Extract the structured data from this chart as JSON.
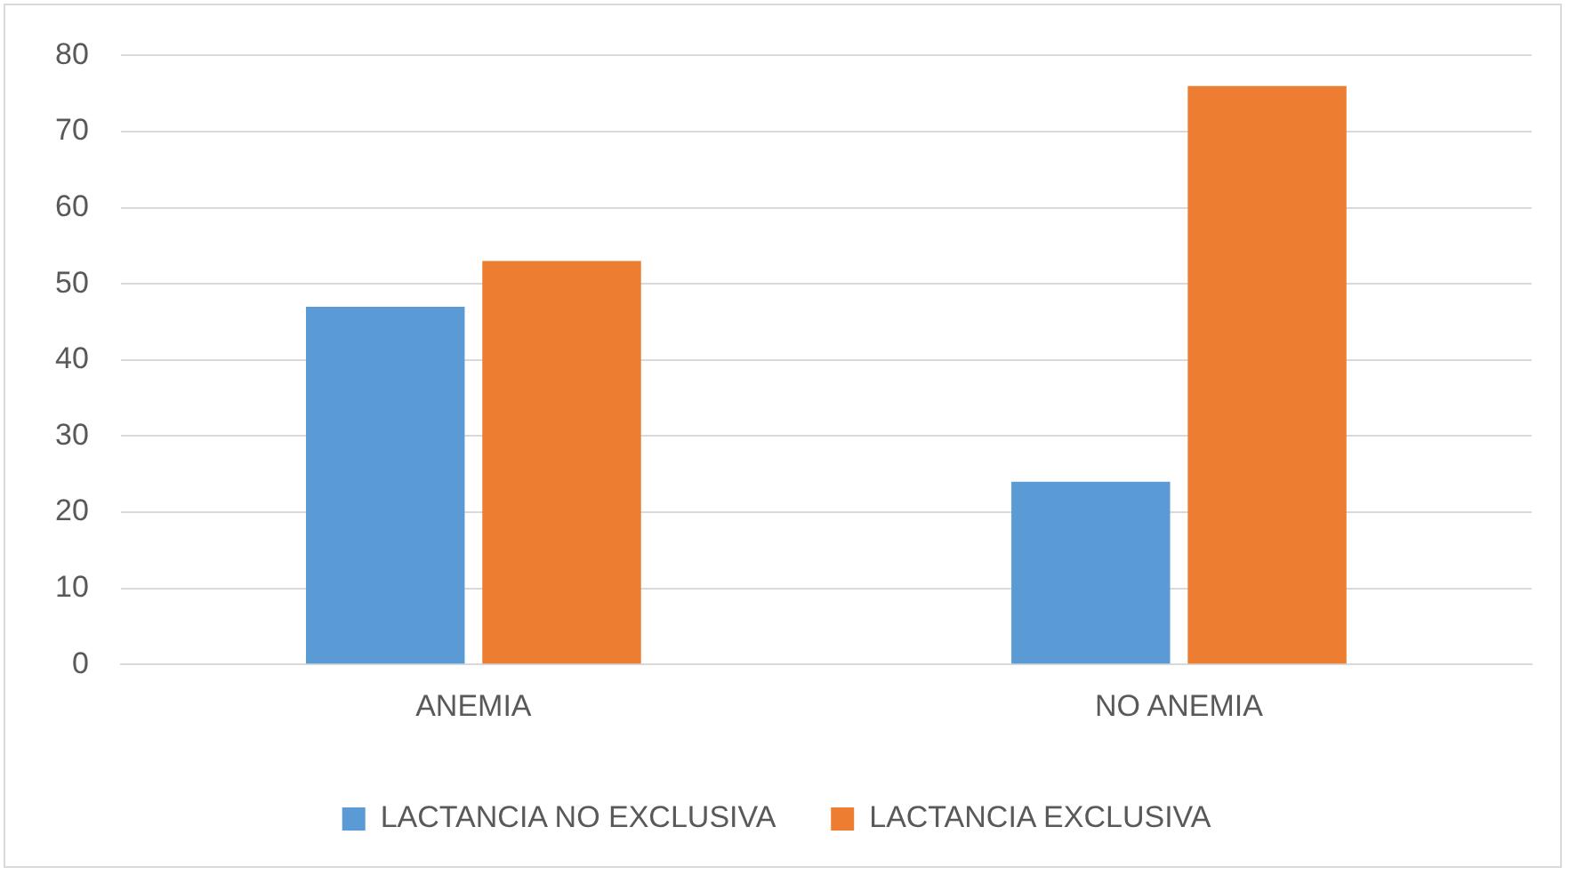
{
  "chart_data": {
    "type": "bar",
    "categories": [
      "ANEMIA",
      "NO ANEMIA"
    ],
    "series": [
      {
        "name": "LACTANCIA NO EXCLUSIVA",
        "color": "#5b9bd5",
        "values": [
          47,
          24
        ]
      },
      {
        "name": "LACTANCIA EXCLUSIVA",
        "color": "#ed7d31",
        "values": [
          53,
          76
        ]
      }
    ],
    "ylim": [
      0,
      80
    ],
    "yticks": [
      0,
      10,
      20,
      30,
      40,
      50,
      60,
      70,
      80
    ],
    "grid": "y",
    "legend": "bottom"
  }
}
